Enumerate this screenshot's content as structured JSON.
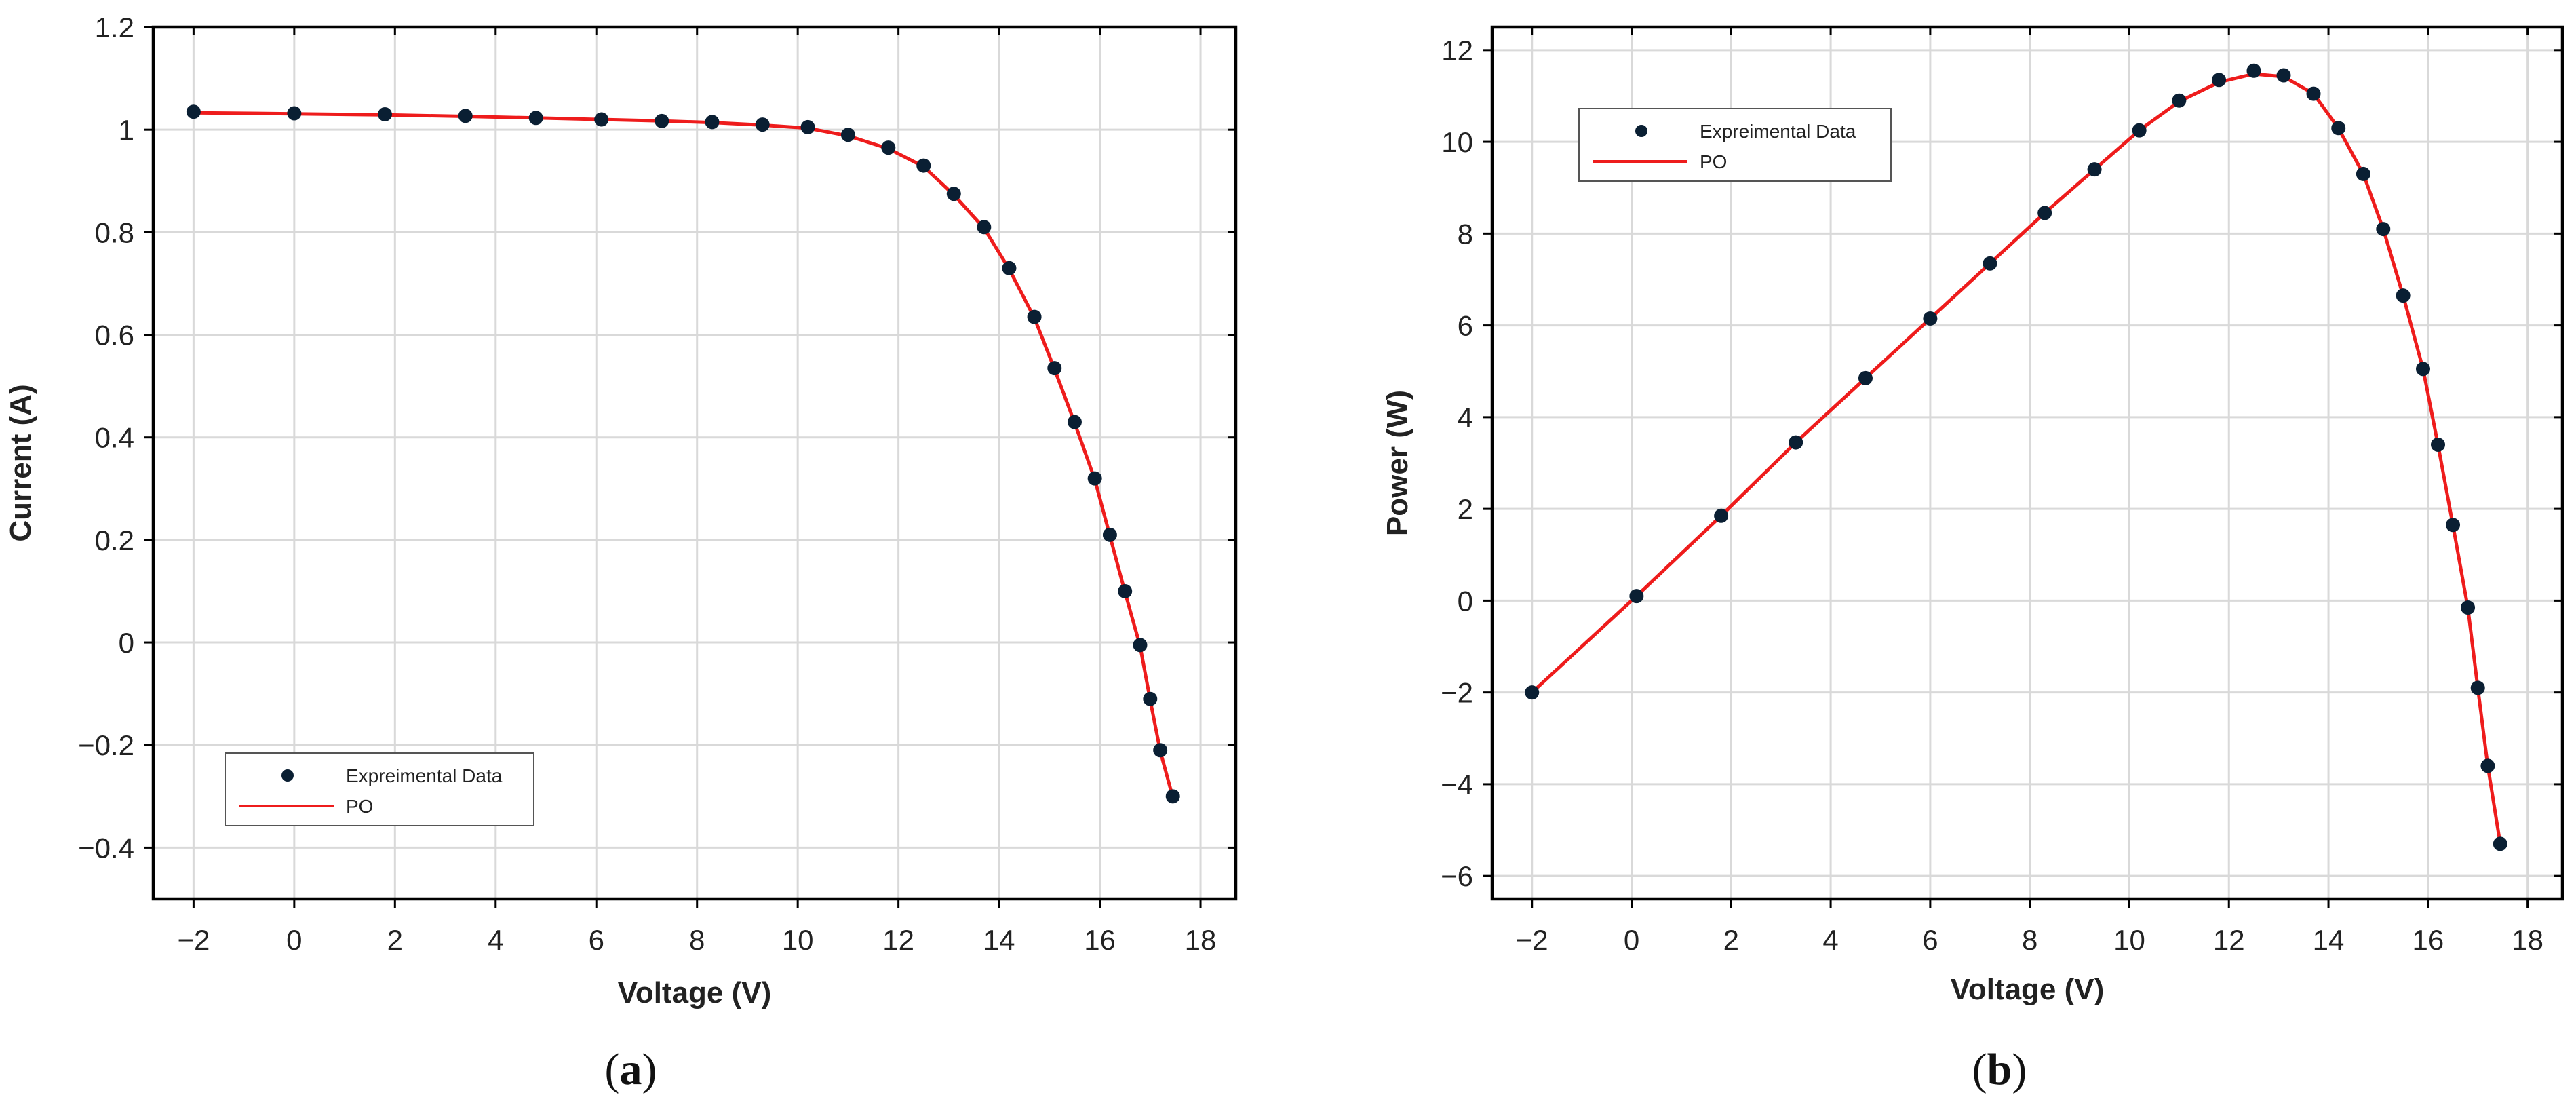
{
  "chart_data": [
    {
      "type": "line",
      "panel_label": "a",
      "xlabel": "Voltage (V)",
      "ylabel": "Current (A)",
      "xlim": [
        -2.8,
        18.7
      ],
      "ylim": [
        -0.5,
        1.2
      ],
      "xticks": [
        -2,
        0,
        2,
        4,
        6,
        8,
        10,
        12,
        14,
        16,
        18
      ],
      "xtick_labels": [
        "−2",
        "0",
        "2",
        "4",
        "6",
        "8",
        "10",
        "12",
        "14",
        "16",
        "18"
      ],
      "yticks": [
        -0.4,
        -0.2,
        0,
        0.2,
        0.4,
        0.6,
        0.8,
        1,
        1.2
      ],
      "ytick_labels": [
        "−0.4",
        "−0.2",
        "0",
        "0.2",
        "0.4",
        "0.6",
        "0.8",
        "1",
        "1.2"
      ],
      "grid": true,
      "legend_position": "bottom-left",
      "series": [
        {
          "name": "Expreimental Data",
          "style": "markers",
          "color": "#0a1f33",
          "x": [
            -2,
            0,
            1.8,
            3.4,
            4.8,
            6.1,
            7.3,
            8.3,
            9.3,
            10.2,
            11.0,
            11.8,
            12.5,
            13.1,
            13.7,
            14.2,
            14.7,
            15.1,
            15.5,
            15.9,
            16.2,
            16.5,
            16.8,
            17.0,
            17.2,
            17.45
          ],
          "y": [
            1.035,
            1.032,
            1.03,
            1.027,
            1.023,
            1.02,
            1.017,
            1.015,
            1.01,
            1.005,
            0.99,
            0.965,
            0.93,
            0.875,
            0.81,
            0.73,
            0.635,
            0.535,
            0.43,
            0.32,
            0.21,
            0.1,
            -0.005,
            -0.11,
            -0.21,
            -0.3
          ]
        },
        {
          "name": "PO",
          "style": "line",
          "color": "#ee1c1c",
          "x": [
            -2,
            0,
            1.8,
            3.4,
            4.8,
            6.1,
            7.3,
            8.3,
            9.3,
            10.2,
            11.0,
            11.8,
            12.5,
            13.1,
            13.7,
            14.2,
            14.7,
            15.1,
            15.5,
            15.9,
            16.2,
            16.5,
            16.8,
            17.0,
            17.2,
            17.45
          ],
          "y": [
            1.033,
            1.031,
            1.029,
            1.026,
            1.023,
            1.02,
            1.017,
            1.014,
            1.009,
            1.003,
            0.988,
            0.963,
            0.928,
            0.873,
            0.808,
            0.728,
            0.633,
            0.533,
            0.428,
            0.318,
            0.208,
            0.098,
            -0.007,
            -0.112,
            -0.212,
            -0.302
          ]
        }
      ]
    },
    {
      "type": "line",
      "panel_label": "b",
      "xlabel": "Voltage (V)",
      "ylabel": "Power (W)",
      "xlim": [
        -2.8,
        18.7
      ],
      "ylim": [
        -6.5,
        12.5
      ],
      "xticks": [
        -2,
        0,
        2,
        4,
        6,
        8,
        10,
        12,
        14,
        16,
        18
      ],
      "xtick_labels": [
        "−2",
        "0",
        "2",
        "4",
        "6",
        "8",
        "10",
        "12",
        "14",
        "16",
        "18"
      ],
      "yticks": [
        -6,
        -4,
        -2,
        0,
        2,
        4,
        6,
        8,
        10,
        12
      ],
      "ytick_labels": [
        "−6",
        "−4",
        "−2",
        "0",
        "2",
        "4",
        "6",
        "8",
        "10",
        "12"
      ],
      "grid": true,
      "legend_position": "top-left",
      "series": [
        {
          "name": "Expreimental Data",
          "style": "markers",
          "color": "#0a1f33",
          "x": [
            -2,
            0.1,
            1.8,
            3.3,
            4.7,
            6.0,
            7.2,
            8.3,
            9.3,
            10.2,
            11.0,
            11.8,
            12.5,
            13.1,
            13.7,
            14.2,
            14.7,
            15.1,
            15.5,
            15.9,
            16.2,
            16.5,
            16.8,
            17.0,
            17.2,
            17.45
          ],
          "y": [
            -2.0,
            0.1,
            1.85,
            3.45,
            4.85,
            6.15,
            7.35,
            8.45,
            9.4,
            10.25,
            10.9,
            11.35,
            11.55,
            11.45,
            11.05,
            10.3,
            9.3,
            8.1,
            6.65,
            5.05,
            3.4,
            1.65,
            -0.15,
            -1.9,
            -3.6,
            -5.3
          ]
        },
        {
          "name": "PO",
          "style": "line",
          "color": "#ee1c1c",
          "x": [
            -2,
            0.1,
            1.8,
            3.3,
            4.7,
            6.0,
            7.2,
            8.3,
            9.3,
            10.2,
            11.0,
            11.8,
            12.5,
            13.1,
            13.7,
            14.2,
            14.7,
            15.1,
            15.5,
            15.9,
            16.2,
            16.5,
            16.8,
            17.0,
            17.2,
            17.45
          ],
          "y": [
            -2.0,
            0.1,
            1.85,
            3.45,
            4.85,
            6.15,
            7.35,
            8.45,
            9.4,
            10.25,
            10.88,
            11.3,
            11.48,
            11.42,
            11.05,
            10.3,
            9.3,
            8.1,
            6.65,
            5.05,
            3.4,
            1.65,
            -0.15,
            -1.9,
            -3.6,
            -5.3
          ]
        }
      ]
    }
  ],
  "captions": {
    "a_open": "(",
    "a_letter": "a",
    "a_close": ")",
    "b_open": "(",
    "b_letter": "b",
    "b_close": ")"
  }
}
